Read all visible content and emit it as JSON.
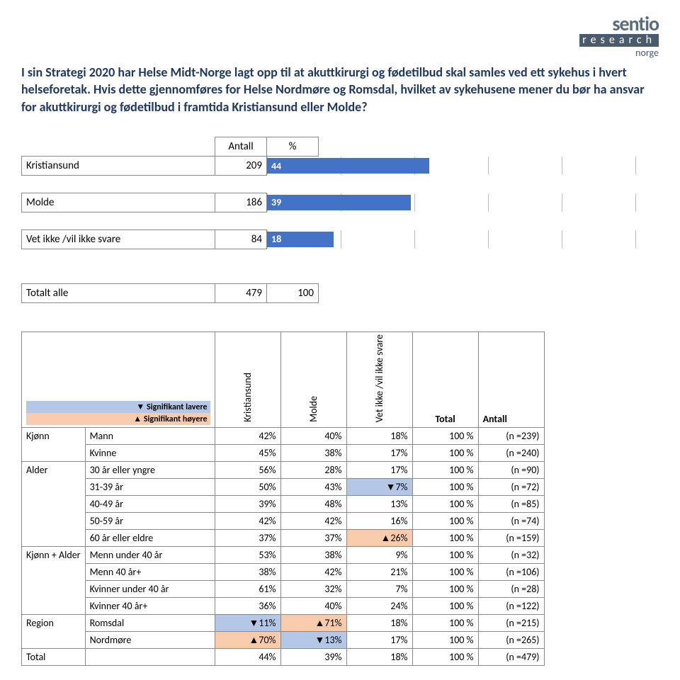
{
  "logo": {
    "top": "sentio",
    "mid": "research",
    "bot": "norge"
  },
  "title": "I sin Strategi 2020 har Helse Midt-Norge lagt opp til at akuttkirurgi og fødetilbud skal samles ved ett sykehus i hvert helseforetak. Hvis dette gjennomføres for Helse Nordmøre og Romsdal, hvilket av sykehusene mener du bør ha ansvar for akuttkirurgi og fødetilbud i framtida Kristiansund eller Molde?",
  "bar_chart": {
    "headers": {
      "antall": "Antall",
      "pct": "%"
    },
    "bar_color": "#4472c4",
    "text_color": "#ffffff",
    "grid_color": "#bfbfbf",
    "max": 100,
    "grid_steps": [
      0,
      20,
      40,
      60,
      80,
      100
    ],
    "rows": [
      {
        "label": "Kristiansund",
        "antall": "209",
        "pct": 44
      },
      {
        "label": "Molde",
        "antall": "186",
        "pct": 39
      },
      {
        "label": "Vet ikke /vil ikke svare",
        "antall": "84",
        "pct": 18
      }
    ],
    "total": {
      "label": "Totalt alle",
      "antall": "479",
      "pct": "100"
    }
  },
  "legend": {
    "low_marker": "▼",
    "low_text": "Signifikant lavere",
    "high_marker": "▲",
    "high_text": "Signifikant høyere"
  },
  "xtab": {
    "col_heads": [
      "Kristiansund",
      "Molde",
      "Vet ikke /vil ikke svare",
      "Total",
      "Antall"
    ],
    "groups": [
      {
        "name": "Kjønn",
        "rows": [
          {
            "cat": "Mann",
            "cells": [
              {
                "v": "42%"
              },
              {
                "v": "40%"
              },
              {
                "v": "18%"
              },
              {
                "v": "100 %"
              },
              {
                "v": "(n =239)"
              }
            ]
          },
          {
            "cat": "Kvinne",
            "cells": [
              {
                "v": "45%"
              },
              {
                "v": "38%"
              },
              {
                "v": "17%"
              },
              {
                "v": "100 %"
              },
              {
                "v": "(n =240)"
              }
            ]
          }
        ]
      },
      {
        "name": "Alder",
        "rows": [
          {
            "cat": "30 år eller yngre",
            "cells": [
              {
                "v": "56%"
              },
              {
                "v": "28%"
              },
              {
                "v": "17%"
              },
              {
                "v": "100 %"
              },
              {
                "v": "(n =90)"
              }
            ]
          },
          {
            "cat": "31-39 år",
            "cells": [
              {
                "v": "50%"
              },
              {
                "v": "43%"
              },
              {
                "v": "▼7%",
                "hl": "low"
              },
              {
                "v": "100 %"
              },
              {
                "v": "(n =72)"
              }
            ]
          },
          {
            "cat": "40-49 år",
            "cells": [
              {
                "v": "39%"
              },
              {
                "v": "48%"
              },
              {
                "v": "13%"
              },
              {
                "v": "100 %"
              },
              {
                "v": "(n =85)"
              }
            ]
          },
          {
            "cat": "50-59 år",
            "cells": [
              {
                "v": "42%"
              },
              {
                "v": "42%"
              },
              {
                "v": "16%"
              },
              {
                "v": "100 %"
              },
              {
                "v": "(n =74)"
              }
            ]
          },
          {
            "cat": "60 år eller eldre",
            "cells": [
              {
                "v": "37%"
              },
              {
                "v": "37%"
              },
              {
                "v": "▲26%",
                "hl": "high"
              },
              {
                "v": "100 %"
              },
              {
                "v": "(n =159)"
              }
            ]
          }
        ]
      },
      {
        "name": "Kjønn + Alder",
        "rows": [
          {
            "cat": "Menn under 40 år",
            "cells": [
              {
                "v": "53%"
              },
              {
                "v": "38%"
              },
              {
                "v": "9%"
              },
              {
                "v": "100 %"
              },
              {
                "v": "(n =32)"
              }
            ]
          },
          {
            "cat": "Menn 40 år+",
            "cells": [
              {
                "v": "38%"
              },
              {
                "v": "42%"
              },
              {
                "v": "21%"
              },
              {
                "v": "100 %"
              },
              {
                "v": "(n =106)"
              }
            ]
          },
          {
            "cat": "Kvinner under 40 år",
            "cells": [
              {
                "v": "61%"
              },
              {
                "v": "32%"
              },
              {
                "v": "7%"
              },
              {
                "v": "100 %"
              },
              {
                "v": "(n =28)"
              }
            ]
          },
          {
            "cat": "Kvinner 40 år+",
            "cells": [
              {
                "v": "36%"
              },
              {
                "v": "40%"
              },
              {
                "v": "24%"
              },
              {
                "v": "100 %"
              },
              {
                "v": "(n =122)"
              }
            ]
          }
        ]
      },
      {
        "name": "Region",
        "rows": [
          {
            "cat": "Romsdal",
            "cells": [
              {
                "v": "▼11%",
                "hl": "low"
              },
              {
                "v": "▲71%",
                "hl": "high"
              },
              {
                "v": "18%"
              },
              {
                "v": "100 %"
              },
              {
                "v": "(n =215)"
              }
            ]
          },
          {
            "cat": "Nordmøre",
            "cells": [
              {
                "v": "▲70%",
                "hl": "high"
              },
              {
                "v": "▼13%",
                "hl": "low"
              },
              {
                "v": "17%"
              },
              {
                "v": "100 %"
              },
              {
                "v": "(n =265)"
              }
            ]
          }
        ]
      },
      {
        "name": "Total",
        "rows": [
          {
            "cat": "",
            "cells": [
              {
                "v": "44%"
              },
              {
                "v": "39%"
              },
              {
                "v": "18%"
              },
              {
                "v": "100 %"
              },
              {
                "v": "(n =479)"
              }
            ]
          }
        ]
      }
    ]
  }
}
